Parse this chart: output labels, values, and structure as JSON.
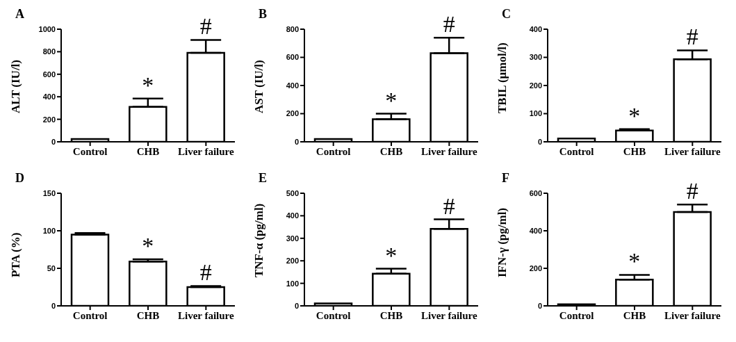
{
  "chart_data": [
    {
      "type": "bar",
      "title": "A",
      "ylabel": "ALT (IU/l)",
      "categories": [
        "Control",
        "CHB",
        "Liver failure"
      ],
      "values": [
        25,
        310,
        790
      ],
      "errors": [
        null,
        [
          310,
          385
        ],
        [
          790,
          905
        ]
      ],
      "color": "#ffffff",
      "ylim": [
        0,
        1000
      ],
      "yticks": [
        0,
        200,
        400,
        600,
        800,
        1000
      ],
      "annotations": [
        {
          "text": "*",
          "x": "CHB",
          "y": 385
        },
        {
          "text": "#",
          "x": "Liver failure",
          "y": 905
        }
      ]
    },
    {
      "type": "bar",
      "title": "B",
      "ylabel": "AST (IU/l)",
      "categories": [
        "Control",
        "CHB",
        "Liver failure"
      ],
      "values": [
        20,
        160,
        630
      ],
      "errors": [
        null,
        [
          160,
          200
        ],
        [
          630,
          740
        ]
      ],
      "color": "#ffffff",
      "ylim": [
        0,
        800
      ],
      "yticks": [
        0,
        200,
        400,
        600,
        800
      ],
      "annotations": [
        {
          "text": "*",
          "x": "CHB",
          "y": 200
        },
        {
          "text": "#",
          "x": "Liver failure",
          "y": 740
        }
      ]
    },
    {
      "type": "bar",
      "title": "C",
      "ylabel": "TBIL (μmol/l)",
      "categories": [
        "Control",
        "CHB",
        "Liver failure"
      ],
      "values": [
        12,
        40,
        293
      ],
      "errors": [
        null,
        [
          40,
          45
        ],
        [
          293,
          325
        ]
      ],
      "color": "#ffffff",
      "ylim": [
        0,
        400
      ],
      "yticks": [
        0,
        100,
        200,
        300,
        400
      ],
      "annotations": [
        {
          "text": "*",
          "x": "CHB",
          "y": 45
        },
        {
          "text": "#",
          "x": "Liver failure",
          "y": 325
        }
      ]
    },
    {
      "type": "bar",
      "title": "D",
      "ylabel": "PTA (%)",
      "categories": [
        "Control",
        "CHB",
        "Liver failure"
      ],
      "values": [
        95,
        59,
        25
      ],
      "errors": [
        [
          95,
          97
        ],
        [
          59,
          62
        ],
        [
          25,
          26.5
        ]
      ],
      "color": "#ffffff",
      "ylim": [
        0,
        150
      ],
      "yticks": [
        0,
        50,
        100,
        150
      ],
      "annotations": [
        {
          "text": "*",
          "x": "CHB",
          "y": 62
        },
        {
          "text": "#",
          "x": "Liver failure",
          "y": 26.5
        }
      ]
    },
    {
      "type": "bar",
      "title": "E",
      "ylabel": "TNF-α (pg/ml)",
      "categories": [
        "Control",
        "CHB",
        "Liver failure"
      ],
      "values": [
        11,
        143,
        342
      ],
      "errors": [
        null,
        [
          143,
          165
        ],
        [
          342,
          384
        ]
      ],
      "color": "#ffffff",
      "ylim": [
        0,
        500
      ],
      "yticks": [
        0,
        100,
        200,
        300,
        400,
        500
      ],
      "annotations": [
        {
          "text": "*",
          "x": "CHB",
          "y": 165
        },
        {
          "text": "#",
          "x": "Liver failure",
          "y": 384
        }
      ]
    },
    {
      "type": "bar",
      "title": "F",
      "ylabel": "IFN-γ (pg/ml)",
      "categories": [
        "Control",
        "CHB",
        "Liver failure"
      ],
      "values": [
        8,
        140,
        500
      ],
      "errors": [
        null,
        [
          140,
          165
        ],
        [
          500,
          540
        ]
      ],
      "color": "#ffffff",
      "ylim": [
        0,
        600
      ],
      "yticks": [
        0,
        200,
        400,
        600
      ],
      "annotations": [
        {
          "text": "*",
          "x": "CHB",
          "y": 165
        },
        {
          "text": "#",
          "x": "Liver failure",
          "y": 540
        }
      ]
    }
  ]
}
